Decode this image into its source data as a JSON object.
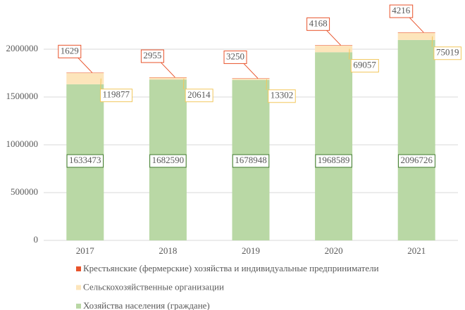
{
  "chart_data": {
    "type": "stacked_bar",
    "categories": [
      "2017",
      "2018",
      "2019",
      "2020",
      "2021"
    ],
    "series": [
      {
        "name": "Хозяйства населения (граждане)",
        "color": "#b9d8a5",
        "values": [
          1633473,
          1682590,
          1678948,
          1968589,
          2096726
        ]
      },
      {
        "name": "Сельскохозяйственные организации",
        "color": "#fde5bb",
        "values": [
          119877,
          20614,
          13302,
          69057,
          75019
        ]
      },
      {
        "name": "Крестьянские (фермерские) хозяйства и индивидуальные предприниматели",
        "color": "#e8532b",
        "values": [
          1629,
          2955,
          3250,
          4168,
          4216
        ]
      }
    ],
    "ylim": [
      0,
      2250000
    ],
    "yticks": [
      0,
      500000,
      1000000,
      1500000,
      2000000
    ],
    "grid": true
  }
}
